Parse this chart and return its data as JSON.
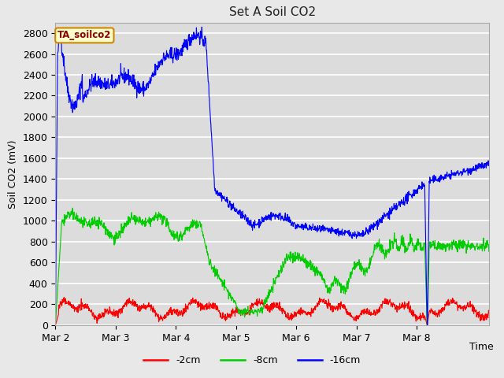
{
  "title": "Set A Soil CO2",
  "ylabel": "Soil CO2 (mV)",
  "xlabel": "Time",
  "annotation_text": "TA_soilco2",
  "annotation_color": "#8B0000",
  "annotation_bg": "#ffffcc",
  "annotation_border": "#cc8800",
  "ylim": [
    0,
    2900
  ],
  "yticks": [
    0,
    200,
    400,
    600,
    800,
    1000,
    1200,
    1400,
    1600,
    1800,
    2000,
    2200,
    2400,
    2600,
    2800
  ],
  "xtick_labels": [
    "Mar 2",
    "Mar 3",
    "Mar 4",
    "Mar 5",
    "Mar 6",
    "Mar 7",
    "Mar 8"
  ],
  "fig_bg": "#e8e8e8",
  "plot_bg": "#dcdcdc",
  "grid_color": "#ffffff",
  "line_colors": {
    "2cm": "#ff0000",
    "8cm": "#00cc00",
    "16cm": "#0000ff"
  },
  "legend_labels": [
    "-2cm",
    "-8cm",
    "-16cm"
  ],
  "n_points": 1440
}
